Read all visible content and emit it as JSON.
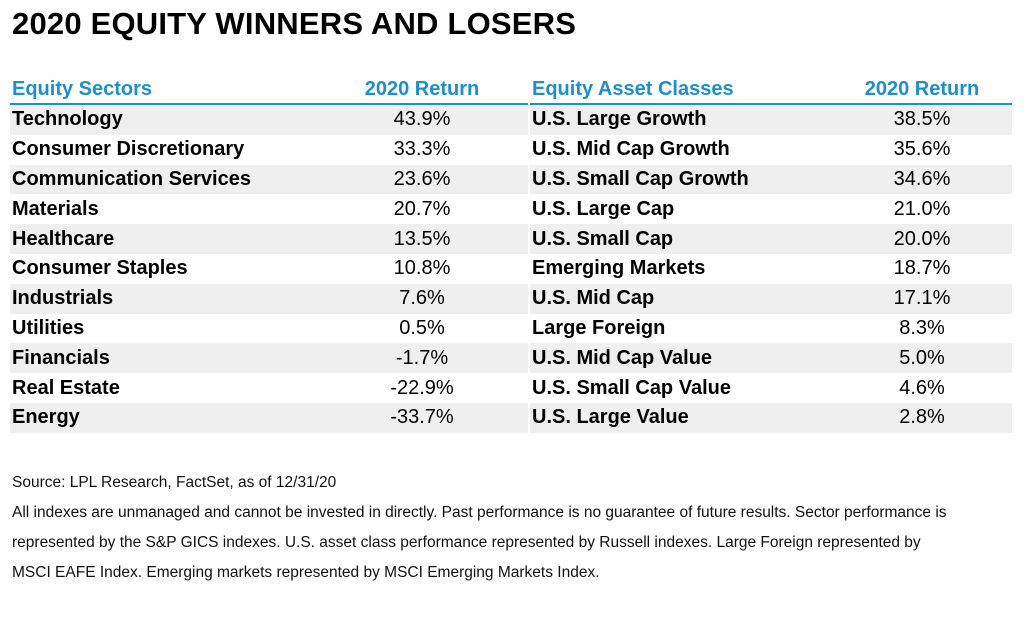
{
  "title": "2020 EQUITY WINNERS AND LOSERS",
  "sectors": {
    "header_name": "Equity Sectors",
    "header_value": "2020 Return",
    "rows": [
      {
        "name": "Technology",
        "value": "43.9%"
      },
      {
        "name": "Consumer Discretionary",
        "value": "33.3%"
      },
      {
        "name": "Communication Services",
        "value": "23.6%"
      },
      {
        "name": "Materials",
        "value": "20.7%"
      },
      {
        "name": "Healthcare",
        "value": "13.5%"
      },
      {
        "name": "Consumer Staples",
        "value": "10.8%"
      },
      {
        "name": "Industrials",
        "value": "7.6%"
      },
      {
        "name": "Utilities",
        "value": "0.5%"
      },
      {
        "name": "Financials",
        "value": "-1.7%"
      },
      {
        "name": "Real Estate",
        "value": "-22.9%"
      },
      {
        "name": "Energy",
        "value": "-33.7%"
      }
    ]
  },
  "asset_classes": {
    "header_name": "Equity Asset Classes",
    "header_value": "2020 Return",
    "rows": [
      {
        "name": "U.S. Large Growth",
        "value": "38.5%"
      },
      {
        "name": "U.S. Mid Cap Growth",
        "value": "35.6%"
      },
      {
        "name": "U.S. Small Cap Growth",
        "value": "34.6%"
      },
      {
        "name": "U.S. Large Cap",
        "value": "21.0%"
      },
      {
        "name": "U.S. Small Cap",
        "value": "20.0%"
      },
      {
        "name": "Emerging Markets",
        "value": "18.7%"
      },
      {
        "name": "U.S. Mid Cap",
        "value": "17.1%"
      },
      {
        "name": "Large Foreign",
        "value": "8.3%"
      },
      {
        "name": "U.S. Mid Cap Value",
        "value": "5.0%"
      },
      {
        "name": "U.S. Small Cap Value",
        "value": "4.6%"
      },
      {
        "name": "U.S. Large Value",
        "value": "2.8%"
      }
    ]
  },
  "footer": {
    "source": "Source: LPL Research, FactSet, as of 12/31/20",
    "note": "All indexes are unmanaged and cannot be invested in directly. Past performance is no guarantee of future results. Sector performance is represented by the S&P GICS indexes. U.S. asset class performance represented by Russell indexes. Large Foreign represented by MSCI EAFE Index. Emerging markets represented by MSCI Emerging Markets Index."
  },
  "colors": {
    "header_accent": "#1b8fd3",
    "row_stripe": "#efefef"
  }
}
